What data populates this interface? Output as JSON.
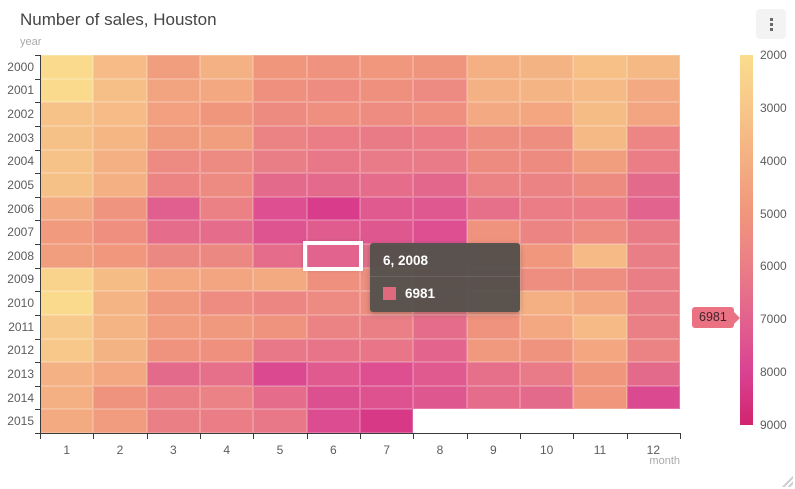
{
  "header": {
    "title": "Number of sales, Houston",
    "menu_icon": "kebab-vertical-icon"
  },
  "axes": {
    "y_title": "year",
    "x_title": "month"
  },
  "legend": {
    "min": 2000,
    "max": 9000,
    "ticks": [
      "2000",
      "3000",
      "4000",
      "5000",
      "6000",
      "7000",
      "8000",
      "9000"
    ],
    "marker": {
      "label": "6981",
      "value": 6981,
      "color": "#EB7283"
    }
  },
  "tooltip": {
    "title": "6, 2008",
    "value": "6981",
    "swatch_color": "#DF6A7E"
  },
  "highlight": {
    "month_index": 5,
    "year_index": 8
  },
  "chart_data": {
    "type": "heatmap",
    "title": "Number of sales, Houston",
    "xlabel": "month",
    "ylabel": "year",
    "x_categories": [
      "1",
      "2",
      "3",
      "4",
      "5",
      "6",
      "7",
      "8",
      "9",
      "10",
      "11",
      "12"
    ],
    "y_categories": [
      "2000",
      "2001",
      "2002",
      "2003",
      "2004",
      "2005",
      "2006",
      "2007",
      "2008",
      "2009",
      "2010",
      "2011",
      "2012",
      "2013",
      "2014",
      "2015"
    ],
    "values": [
      [
        2100,
        3500,
        4700,
        3900,
        5000,
        5150,
        4950,
        5050,
        3950,
        3850,
        3300,
        3600
      ],
      [
        2100,
        3350,
        4500,
        4300,
        5250,
        5400,
        5250,
        5500,
        3900,
        3800,
        3550,
        4250
      ],
      [
        3200,
        3500,
        4600,
        5000,
        5450,
        5300,
        5400,
        5300,
        4250,
        4350,
        3450,
        4400
      ],
      [
        3250,
        3700,
        4800,
        4700,
        5800,
        6050,
        6100,
        6050,
        5350,
        5350,
        3600,
        5700
      ],
      [
        3200,
        4000,
        5500,
        5500,
        6000,
        6250,
        6150,
        6150,
        5450,
        5450,
        4700,
        6050
      ],
      [
        3250,
        4000,
        5750,
        5500,
        6700,
        6700,
        6600,
        6850,
        5800,
        5800,
        5450,
        6700
      ],
      [
        4250,
        5100,
        7100,
        5900,
        7600,
        8200,
        7250,
        7300,
        6500,
        6050,
        6050,
        6950
      ],
      [
        4850,
        5300,
        6600,
        6600,
        7450,
        7200,
        7350,
        7600,
        5150,
        5750,
        5400,
        6100
      ],
      [
        4700,
        4950,
        5600,
        5600,
        6650,
        6981,
        6500,
        6300,
        5700,
        4950,
        3550,
        6000
      ],
      [
        2500,
        3450,
        4300,
        4400,
        4200,
        5250,
        5300,
        5600,
        5500,
        5350,
        5350,
        6000
      ],
      [
        2150,
        3800,
        4900,
        5400,
        5650,
        5500,
        5350,
        6050,
        5100,
        3950,
        4300,
        6000
      ],
      [
        2900,
        3800,
        4750,
        4900,
        5150,
        5800,
        5950,
        6600,
        5150,
        4300,
        3550,
        5950
      ],
      [
        2950,
        3850,
        5150,
        5250,
        6200,
        6350,
        6300,
        6900,
        4900,
        5150,
        4350,
        5800
      ],
      [
        3900,
        4300,
        6700,
        6550,
        7750,
        7250,
        7600,
        7250,
        6550,
        6150,
        5000,
        6700
      ],
      [
        3950,
        5150,
        5950,
        5850,
        6650,
        7550,
        7500,
        7350,
        6600,
        6700,
        5000,
        7750
      ],
      [
        4200,
        4750,
        5950,
        6050,
        6250,
        7700,
        8300,
        null,
        null,
        null,
        null,
        null
      ]
    ],
    "selected_point": {
      "month": "6",
      "year": "2008",
      "value": 6981
    },
    "color_scale": {
      "min": 2000,
      "max": 9000,
      "stops": [
        {
          "value": 2000,
          "color": "#FADD8E"
        },
        {
          "value": 3000,
          "color": "#F7C789"
        },
        {
          "value": 4000,
          "color": "#F4AF82"
        },
        {
          "value": 5000,
          "color": "#F0967D"
        },
        {
          "value": 6000,
          "color": "#EA7E86"
        },
        {
          "value": 7000,
          "color": "#E2628E"
        },
        {
          "value": 8000,
          "color": "#D94292"
        },
        {
          "value": 9000,
          "color": "#D2246E"
        }
      ],
      "legend_position": "right"
    }
  }
}
